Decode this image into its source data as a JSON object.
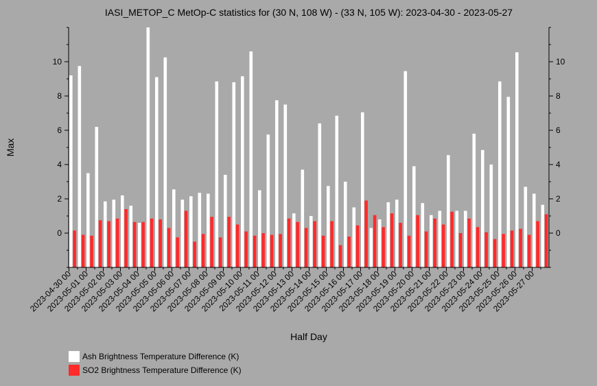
{
  "chart_data": {
    "type": "bar",
    "title": "IASI_METOP_C MetOp-C statistics for (30 N, 108 W) - (33 N, 105 W): 2023-04-30 - 2023-05-27",
    "xlabel": "Half Day",
    "ylabel": "Max",
    "ylim": [
      -2,
      12
    ],
    "yticks": [
      0,
      2,
      4,
      6,
      8,
      10
    ],
    "x_tick_labels": [
      "2023-04-30 00",
      "2023-05-01 00",
      "2023-05-02 00",
      "2023-05-03 00",
      "2023-05-04 00",
      "2023-05-05 00",
      "2023-05-06 00",
      "2023-05-07 00",
      "2023-05-08 00",
      "2023-05-09 00",
      "2023-05-10 00",
      "2023-05-11 00",
      "2023-05-12 00",
      "2023-05-13 00",
      "2023-05-14 00",
      "2023-05-15 00",
      "2023-05-16 00",
      "2023-05-17 00",
      "2023-05-18 00",
      "2023-05-19 00",
      "2023-05-20 00",
      "2023-05-21 00",
      "2023-05-22 00",
      "2023-05-23 00",
      "2023-05-24 00",
      "2023-05-25 00",
      "2023-05-26 00",
      "2023-05-27 00"
    ],
    "legend_position": "bottom-left",
    "grid": false,
    "series": [
      {
        "name": "Ash Brightness Temperature Difference (K)",
        "color": "#ffffff",
        "values": [
          9.2,
          9.75,
          3.5,
          6.2,
          1.85,
          1.95,
          2.2,
          1.6,
          0.6,
          12.0,
          9.1,
          10.25,
          2.55,
          1.95,
          2.15,
          2.35,
          2.3,
          8.85,
          3.4,
          8.8,
          9.15,
          10.6,
          2.5,
          5.75,
          7.75,
          7.5,
          1.15,
          3.7,
          1.0,
          6.4,
          2.75,
          6.85,
          3.0,
          1.5,
          7.05,
          0.3,
          0.8,
          1.8,
          1.95,
          9.45,
          3.9,
          1.75,
          1.05,
          1.3,
          4.55,
          1.3,
          1.3,
          5.8,
          4.85,
          4.0,
          8.85,
          7.95,
          10.55,
          2.7,
          2.3,
          1.65
        ]
      },
      {
        "name": "SO2 Brightness Temperature Difference (K)",
        "color": "#ff2a2a",
        "values": [
          0.15,
          -0.1,
          -0.15,
          0.75,
          0.7,
          0.85,
          1.4,
          0.65,
          0.65,
          0.85,
          0.8,
          0.3,
          -0.25,
          1.3,
          -0.5,
          -0.05,
          0.95,
          -0.25,
          0.95,
          0.5,
          0.1,
          -0.15,
          0.0,
          -0.1,
          -0.05,
          0.85,
          0.65,
          0.3,
          0.7,
          -0.15,
          0.7,
          -0.7,
          -0.2,
          0.45,
          1.9,
          1.05,
          0.35,
          1.15,
          0.6,
          -0.15,
          1.05,
          0.1,
          0.85,
          0.5,
          1.25,
          0.0,
          0.85,
          0.35,
          0.05,
          -0.35,
          -0.05,
          0.15,
          0.25,
          -0.1,
          0.7,
          1.1
        ]
      }
    ]
  }
}
